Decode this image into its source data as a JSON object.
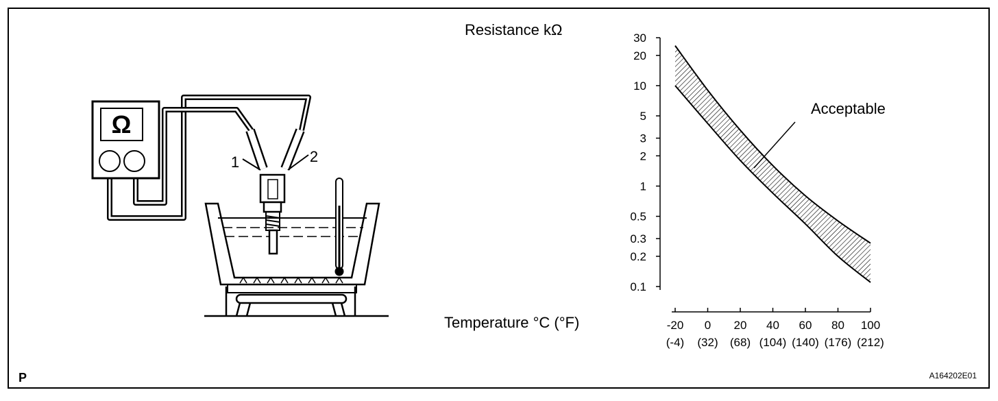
{
  "chart_data": {
    "type": "band",
    "title": "Resistance kΩ",
    "x_label": "Temperature °C (°F)",
    "annotation": "Acceptable",
    "log_y": true,
    "x": [
      -20,
      0,
      20,
      40,
      60,
      80,
      100
    ],
    "series": [
      {
        "values": [
          25,
          9,
          3.6,
          1.6,
          0.8,
          0.45,
          0.27
        ]
      },
      {
        "values": [
          10,
          4.2,
          1.8,
          0.85,
          0.42,
          0.2,
          0.11
        ]
      }
    ],
    "color": "#000000",
    "xlim": [
      -20,
      100
    ],
    "xticks": [
      -20,
      0,
      20,
      40,
      60,
      80,
      100
    ],
    "xtick_secondary_labels": [
      "(-4)",
      "(32)",
      "(68)",
      "(104)",
      "(140)",
      "(176)",
      "(212)"
    ],
    "ylim": [
      0.1,
      30
    ],
    "yticks": [
      0.1,
      0.2,
      0.3,
      0.5,
      1,
      2,
      3,
      5,
      10,
      20,
      30
    ]
  },
  "illustration": {
    "meter_symbol": "Ω",
    "terminal_labels": [
      "1",
      "2"
    ]
  },
  "footer": {
    "corner_mark": "P",
    "figure_id": "A164202E01"
  }
}
